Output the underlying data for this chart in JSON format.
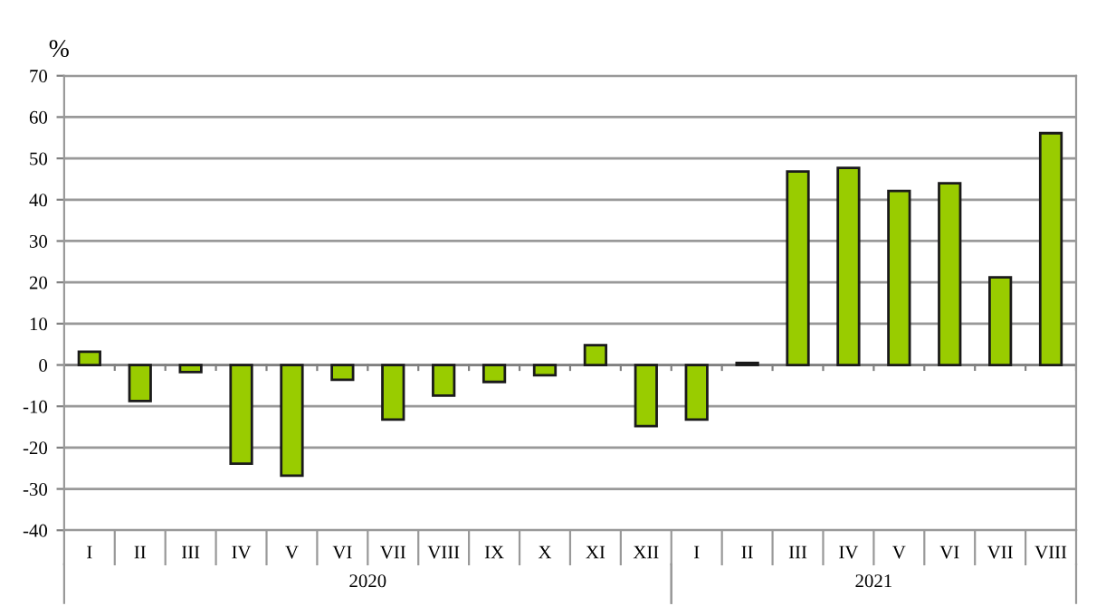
{
  "chart_data": {
    "type": "bar",
    "ylabel": "%",
    "categories": [
      "I",
      "II",
      "III",
      "IV",
      "V",
      "VI",
      "VII",
      "VIII",
      "IX",
      "X",
      "XI",
      "XII",
      "I",
      "II",
      "III",
      "IV",
      "V",
      "VI",
      "VII",
      "VIII"
    ],
    "series": [
      {
        "color": "#99cc00",
        "values": [
          3.2,
          -8.7,
          -1.7,
          -23.9,
          -26.8,
          -3.6,
          -13.2,
          -7.4,
          -4.1,
          -2.5,
          4.8,
          -14.8,
          -13.2,
          0.5,
          46.8,
          47.7,
          42.1,
          44.0,
          21.2,
          56.1
        ]
      }
    ],
    "ylim": [
      -40,
      70
    ],
    "yticks": [
      -40,
      -30,
      -20,
      -10,
      0,
      10,
      20,
      30,
      40,
      50,
      60,
      70
    ],
    "grid": "y",
    "legend": false,
    "annotations": [
      "2020",
      "2021"
    ]
  }
}
